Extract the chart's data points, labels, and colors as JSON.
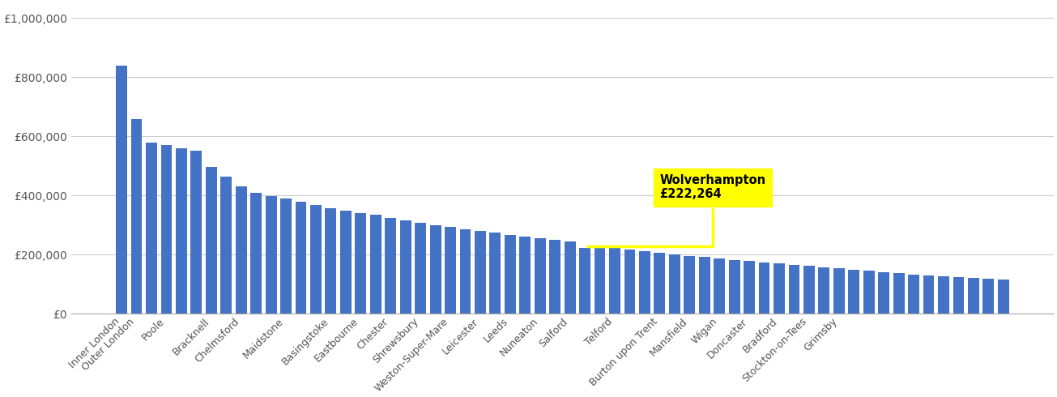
{
  "bar_color": "#4472C4",
  "highlight_index": 31,
  "highlight_label": "Wolverhampton\n£222,264",
  "highlight_bg": "#FFFF00",
  "ytick_values": [
    0,
    200000,
    400000,
    600000,
    800000,
    1000000
  ],
  "ylabel_ticks": [
    "£0",
    "£200,000",
    "£400,000",
    "£600,000",
    "£800,000",
    "£1,000,000"
  ],
  "background_color": "#FFFFFF",
  "grid_color": "#CCCCCC",
  "all_values": [
    840000,
    660000,
    580000,
    572000,
    560000,
    552000,
    498000,
    464000,
    430000,
    410000,
    398000,
    390000,
    378000,
    368000,
    358000,
    350000,
    342000,
    335000,
    325000,
    316000,
    308000,
    300000,
    294000,
    287000,
    280000,
    274000,
    268000,
    262000,
    256000,
    250000,
    244000,
    222264,
    230000,
    225000,
    218000,
    212000,
    207000,
    202000,
    197000,
    192000,
    187000,
    183000,
    178000,
    174000,
    170000,
    166000,
    162000,
    158000,
    154000,
    150000,
    146000,
    142000,
    138000,
    134000,
    130000,
    127000,
    124000,
    121000,
    118000,
    115000
  ],
  "all_labels_map": {
    "0": "Inner London",
    "1": "Outer London",
    "3": "Poole",
    "6": "Bracknell",
    "8": "Chelmsford",
    "11": "Maidstone",
    "14": "Basingstoke",
    "16": "Eastbourne",
    "18": "Chester",
    "20": "Shrewsbury",
    "22": "Weston-Super-Mare",
    "24": "Leicester",
    "26": "Leeds",
    "28": "Nuneaton",
    "30": "Salford",
    "31": "Wolverhampton",
    "33": "Telford",
    "36": "Burton upon Trent",
    "38": "Mansfield",
    "40": "Wigan",
    "42": "Doncaster",
    "44": "Bradford",
    "46": "Stockton-on-Tees",
    "48": "Grimsby"
  }
}
